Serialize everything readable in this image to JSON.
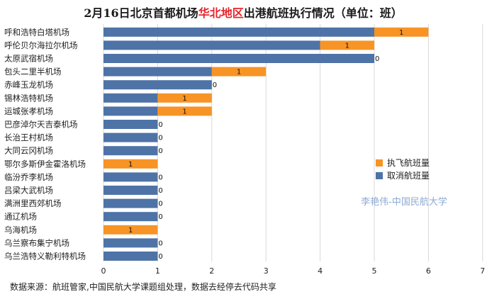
{
  "colors": {
    "cancelled": "#4E73A7",
    "executed": "#F79425",
    "title": "#1a1a1a",
    "title_highlight": "#E8242B",
    "watermark": "#8EA9D3",
    "grid": "#d9d9d9"
  },
  "title": {
    "prefix": "2月16日北京首都机场",
    "highlight": "华北地区",
    "suffix": "出港航班执行情况（单位：班）"
  },
  "source": "数据来源：航班管家,中国民航大学课题组处理，数据去经停去代码共享",
  "watermark": "李艳伟-中国民航大学",
  "chart_data": {
    "type": "bar",
    "orientation": "horizontal",
    "stacked": true,
    "categories": [
      "呼和浩特白塔机场",
      "呼伦贝尔海拉尔机场",
      "太原武宿机场",
      "包头二里半机场",
      "赤峰玉龙机场",
      "锡林浩特机场",
      "运城张孝机场",
      "巴彦淖尔天吉泰机场",
      "长治王村机场",
      "大同云冈机场",
      "鄂尔多斯伊金霍洛机场",
      "临汾乔李机场",
      "吕梁大武机场",
      "满洲里西郊机场",
      "通辽机场",
      "乌海机场",
      "乌兰察布集宁机场",
      "乌兰浩特义勒利特机场"
    ],
    "series": [
      {
        "name": "取消航班量",
        "color": "#4E73A7",
        "values": [
          5,
          4,
          5,
          2,
          2,
          1,
          1,
          1,
          1,
          1,
          0,
          1,
          1,
          1,
          1,
          0,
          1,
          1
        ]
      },
      {
        "name": "执飞航班量",
        "color": "#F79425",
        "values": [
          1,
          1,
          0,
          1,
          0,
          1,
          1,
          0,
          0,
          0,
          1,
          0,
          0,
          0,
          0,
          1,
          0,
          0
        ]
      }
    ],
    "xlim": [
      0,
      7
    ],
    "xticks": [
      "0",
      "1",
      "2",
      "3",
      "4",
      "5",
      "6",
      "7"
    ],
    "legend_position": "right",
    "grid": true
  }
}
